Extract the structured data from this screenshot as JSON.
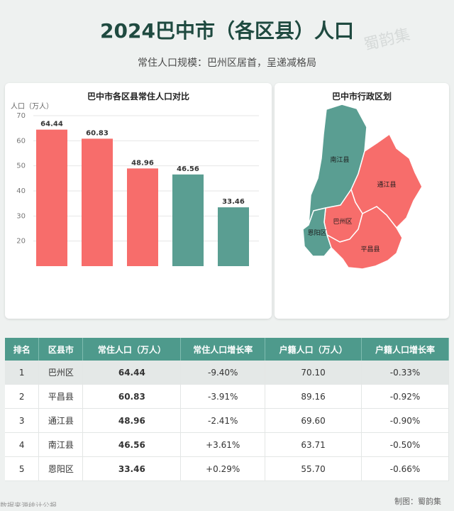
{
  "header": {
    "title": "2024巴中市（各区县）人口",
    "subtitle": "常住人口规模：巴州区居首，呈递减格局",
    "watermark": "蜀韵集"
  },
  "chart_data": {
    "type": "bar",
    "title": "巴中市各区县常住人口对比",
    "ylabel": "人口（万人）",
    "categories": [
      "巴州区",
      "平昌县",
      "通江县",
      "南江县",
      "恩阳区"
    ],
    "values": [
      64.44,
      60.83,
      48.96,
      46.56,
      33.46
    ],
    "bar_colors": [
      "#f76d6b",
      "#f76d6b",
      "#f76d6b",
      "#5a9e92",
      "#5a9e92"
    ],
    "yticks": [
      20,
      30,
      40,
      50,
      60,
      70
    ],
    "ylim": [
      10,
      70
    ],
    "grid": true
  },
  "map": {
    "title": "巴中市行政区划",
    "regions": [
      {
        "name": "南江县",
        "color": "#5a9e92"
      },
      {
        "name": "通江县",
        "color": "#f76d6b"
      },
      {
        "name": "巴州区",
        "color": "#f76d6b"
      },
      {
        "name": "恩阳区",
        "color": "#5a9e92"
      },
      {
        "name": "平昌县",
        "color": "#f76d6b"
      }
    ]
  },
  "table": {
    "headers": [
      "排名",
      "区县市",
      "常住人口（万人）",
      "常住人口增长率",
      "户籍人口（万人）",
      "户籍人口增长率"
    ],
    "rows": [
      [
        "1",
        "巴州区",
        "64.44",
        "-9.40%",
        "70.10",
        "-0.33%"
      ],
      [
        "2",
        "平昌县",
        "60.83",
        "-3.91%",
        "89.16",
        "-0.92%"
      ],
      [
        "3",
        "通江县",
        "48.96",
        "-2.41%",
        "69.60",
        "-0.90%"
      ],
      [
        "4",
        "南江县",
        "46.56",
        "+3.61%",
        "63.71",
        "-0.50%"
      ],
      [
        "5",
        "恩阳区",
        "33.46",
        "+0.29%",
        "55.70",
        "-0.66%"
      ]
    ]
  },
  "footer": {
    "credit": "制图：蜀韵集",
    "bottom_text": "数据来源统计公报"
  },
  "colors": {
    "accent_red": "#f76d6b",
    "accent_teal": "#5a9e92",
    "header_teal": "#4e9a8c",
    "title_green": "#1f4a40"
  }
}
